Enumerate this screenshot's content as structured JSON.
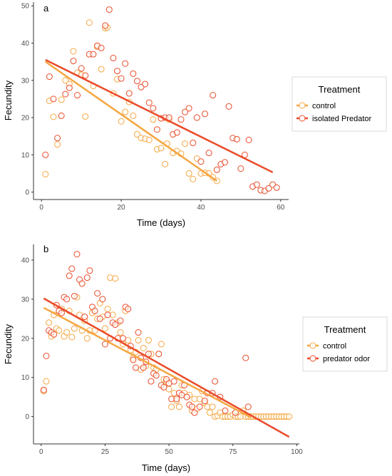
{
  "chart_data": [
    {
      "type": "scatter",
      "panel_label": "a",
      "title": "",
      "xlabel": "Time (days)",
      "ylabel": "Fecundity",
      "xlim": [
        -2,
        62
      ],
      "ylim": [
        -2,
        51
      ],
      "x_ticks": [
        0,
        20,
        40,
        60
      ],
      "y_ticks": [
        0,
        10,
        20,
        30,
        40,
        50
      ],
      "legend": {
        "title": "Treatment",
        "position": "right"
      },
      "grid": false,
      "series": [
        {
          "name": "control",
          "color": "#f5a742",
          "fit": {
            "x": [
              1,
              44
            ],
            "y": [
              35,
              3
            ]
          },
          "points": [
            [
              1,
              4.8
            ],
            [
              2,
              24.5
            ],
            [
              3,
              20.2
            ],
            [
              4,
              12.8
            ],
            [
              5,
              24.8
            ],
            [
              6,
              30
            ],
            [
              7,
              29
            ],
            [
              8,
              37.8
            ],
            [
              9,
              32
            ],
            [
              10,
              31.5
            ],
            [
              11,
              20.3
            ],
            [
              12,
              45.5
            ],
            [
              13,
              28.5
            ],
            [
              14,
              39
            ],
            [
              15,
              33
            ],
            [
              16,
              44
            ],
            [
              16.5,
              44.2
            ],
            [
              18,
              26.5
            ],
            [
              19,
              30.3
            ],
            [
              20,
              19
            ],
            [
              21,
              21.5
            ],
            [
              22,
              24.2
            ],
            [
              23,
              20.5
            ],
            [
              24,
              15.5
            ],
            [
              25,
              14.5
            ],
            [
              26,
              14.3
            ],
            [
              27,
              14
            ],
            [
              28,
              19.5
            ],
            [
              29,
              11.5
            ],
            [
              30,
              11.8
            ],
            [
              31,
              7.5
            ],
            [
              31.5,
              13
            ],
            [
              32,
              19.5
            ],
            [
              33,
              10.5
            ],
            [
              34,
              11
            ],
            [
              35,
              10.3
            ],
            [
              36,
              13
            ],
            [
              37,
              5
            ],
            [
              38,
              3.5
            ],
            [
              39,
              9
            ],
            [
              40,
              5
            ],
            [
              41,
              5.2
            ],
            [
              42,
              5
            ],
            [
              43,
              4
            ],
            [
              44,
              3
            ]
          ]
        },
        {
          "name": "isolated Predator",
          "color": "#ea4b2a",
          "fit": {
            "x": [
              1,
              58
            ],
            "y": [
              35.5,
              5.3
            ]
          },
          "points": [
            [
              1,
              10
            ],
            [
              2,
              31
            ],
            [
              3,
              25
            ],
            [
              4,
              14.5
            ],
            [
              5,
              20.5
            ],
            [
              6,
              26.3
            ],
            [
              7,
              28
            ],
            [
              8,
              35.2
            ],
            [
              9,
              26
            ],
            [
              10,
              33.2
            ],
            [
              11,
              31.3
            ],
            [
              12,
              37
            ],
            [
              13,
              37
            ],
            [
              14,
              39.3
            ],
            [
              15,
              38.7
            ],
            [
              16,
              44.7
            ],
            [
              17,
              49
            ],
            [
              18,
              36
            ],
            [
              19,
              32.5
            ],
            [
              20,
              30.5
            ],
            [
              21,
              34.5
            ],
            [
              22,
              26.5
            ],
            [
              23,
              31.8
            ],
            [
              24,
              29.8
            ],
            [
              25,
              28.2
            ],
            [
              26,
              29
            ],
            [
              27,
              24
            ],
            [
              28,
              22.5
            ],
            [
              29,
              16.8
            ],
            [
              30,
              19.8
            ],
            [
              31,
              20
            ],
            [
              32,
              20
            ],
            [
              33,
              15.5
            ],
            [
              34,
              16
            ],
            [
              35,
              19.5
            ],
            [
              36,
              21.5
            ],
            [
              37,
              22.5
            ],
            [
              38,
              13.2
            ],
            [
              39,
              20
            ],
            [
              40,
              8.2
            ],
            [
              41,
              21
            ],
            [
              42,
              10.5
            ],
            [
              43,
              26
            ],
            [
              44,
              6
            ],
            [
              45,
              7.5
            ],
            [
              46,
              8
            ],
            [
              47,
              23
            ],
            [
              48,
              14.5
            ],
            [
              49,
              14.2
            ],
            [
              50,
              6.3
            ],
            [
              51,
              10
            ],
            [
              52,
              14
            ],
            [
              53,
              1.5
            ],
            [
              54,
              2
            ],
            [
              55,
              0.5
            ],
            [
              56,
              0.3
            ],
            [
              57,
              1
            ],
            [
              58,
              2
            ],
            [
              59,
              1.2
            ]
          ]
        }
      ]
    },
    {
      "type": "scatter",
      "panel_label": "b",
      "title": "",
      "xlabel": "Time (days)",
      "ylabel": "Fecundity",
      "xlim": [
        -3,
        101
      ],
      "ylim": [
        -7,
        44
      ],
      "x_ticks": [
        0,
        25,
        50,
        75,
        100
      ],
      "y_ticks": [
        0,
        10,
        20,
        30,
        40
      ],
      "legend": {
        "title": "Treatment",
        "position": "right"
      },
      "grid": false,
      "series": [
        {
          "name": "control",
          "color": "#f5a742",
          "fit": {
            "x": [
              1,
              82
            ],
            "y": [
              27.8,
              -0.2
            ]
          },
          "points": [
            [
              1,
              6.5
            ],
            [
              2,
              9
            ],
            [
              3,
              24
            ],
            [
              4,
              20.5
            ],
            [
              5,
              26
            ],
            [
              6,
              22.5
            ],
            [
              7,
              22
            ],
            [
              8,
              27.5
            ],
            [
              9,
              20.5
            ],
            [
              10,
              21.5
            ],
            [
              11,
              27
            ],
            [
              12,
              20.3
            ],
            [
              13,
              22.5
            ],
            [
              14,
              30.5
            ],
            [
              15,
              26
            ],
            [
              16,
              22
            ],
            [
              17,
              24.5
            ],
            [
              18,
              20
            ],
            [
              19,
              22
            ],
            [
              20,
              26.5
            ],
            [
              21,
              22
            ],
            [
              22,
              25
            ],
            [
              23,
              29
            ],
            [
              24,
              25.5
            ],
            [
              25,
              22.5
            ],
            [
              26,
              27.5
            ],
            [
              27,
              35.5
            ],
            [
              28,
              26
            ],
            [
              29,
              35.3
            ],
            [
              30,
              24
            ],
            [
              31,
              21.5
            ],
            [
              32,
              18.5
            ],
            [
              33,
              27
            ],
            [
              34,
              19.5
            ],
            [
              35,
              17
            ],
            [
              36,
              15
            ],
            [
              37,
              16.5
            ],
            [
              38,
              19.5
            ],
            [
              39,
              12
            ],
            [
              40,
              17.5
            ],
            [
              41,
              13
            ],
            [
              42,
              19.5
            ],
            [
              43,
              16
            ],
            [
              44,
              12.5
            ],
            [
              45,
              12
            ],
            [
              46,
              16
            ],
            [
              47,
              18.5
            ],
            [
              48,
              9.5
            ],
            [
              49,
              9
            ],
            [
              50,
              7
            ],
            [
              51,
              2.5
            ],
            [
              52,
              6
            ],
            [
              53,
              4
            ],
            [
              54,
              2.5
            ],
            [
              55,
              8
            ],
            [
              56,
              6
            ],
            [
              57,
              5
            ],
            [
              58,
              5.5
            ],
            [
              59,
              1.5
            ],
            [
              60,
              4.5
            ],
            [
              61,
              2
            ],
            [
              62,
              4.5
            ],
            [
              63,
              6.5
            ],
            [
              64,
              3.5
            ],
            [
              65,
              2.5
            ],
            [
              66,
              1
            ],
            [
              67,
              2.5
            ],
            [
              68,
              0
            ],
            [
              69,
              0.2
            ],
            [
              70,
              1
            ],
            [
              71,
              0
            ],
            [
              72,
              0
            ],
            [
              73,
              0
            ],
            [
              74,
              0
            ],
            [
              75,
              0.5
            ],
            [
              76,
              0
            ],
            [
              77,
              0
            ],
            [
              78,
              0
            ],
            [
              79,
              1.5
            ],
            [
              80,
              0
            ],
            [
              81,
              0
            ],
            [
              82,
              0
            ],
            [
              83,
              0
            ],
            [
              84,
              0
            ],
            [
              85,
              0
            ],
            [
              86,
              0
            ],
            [
              87,
              0
            ],
            [
              88,
              0
            ],
            [
              89,
              0
            ],
            [
              90,
              0
            ],
            [
              91,
              0
            ],
            [
              92,
              0
            ],
            [
              93,
              0
            ],
            [
              94,
              0
            ],
            [
              95,
              0
            ],
            [
              96,
              0
            ],
            [
              97,
              0
            ]
          ]
        },
        {
          "name": "predator odor",
          "color": "#ea4b2a",
          "fit": {
            "x": [
              1,
              97
            ],
            "y": [
              30.2,
              -5.2
            ]
          },
          "points": [
            [
              1,
              6.8
            ],
            [
              2,
              15.5
            ],
            [
              3,
              22
            ],
            [
              4,
              21.5
            ],
            [
              5,
              21
            ],
            [
              6,
              28.5
            ],
            [
              7,
              27
            ],
            [
              8,
              26.5
            ],
            [
              9,
              30.5
            ],
            [
              10,
              30
            ],
            [
              11,
              36
            ],
            [
              12,
              37.8
            ],
            [
              13,
              30.8
            ],
            [
              14,
              41.5
            ],
            [
              15,
              35
            ],
            [
              16,
              34
            ],
            [
              17,
              25.5
            ],
            [
              18,
              35.5
            ],
            [
              19,
              37.3
            ],
            [
              20,
              28
            ],
            [
              21,
              27
            ],
            [
              22,
              31.5
            ],
            [
              23,
              25
            ],
            [
              24,
              30
            ],
            [
              25,
              18.5
            ],
            [
              26,
              26
            ],
            [
              27,
              20
            ],
            [
              28,
              24
            ],
            [
              29,
              23.5
            ],
            [
              30,
              20
            ],
            [
              31,
              24.5
            ],
            [
              32,
              20
            ],
            [
              33,
              28
            ],
            [
              34,
              27.5
            ],
            [
              35,
              18
            ],
            [
              36,
              14.5
            ],
            [
              37,
              12.5
            ],
            [
              38,
              21.5
            ],
            [
              39,
              15
            ],
            [
              40,
              12.5
            ],
            [
              41,
              14
            ],
            [
              42,
              16
            ],
            [
              43,
              9
            ],
            [
              44,
              11
            ],
            [
              45,
              10.5
            ],
            [
              46,
              16
            ],
            [
              47,
              8
            ],
            [
              48,
              7.5
            ],
            [
              49,
              9.5
            ],
            [
              50,
              8.5
            ],
            [
              51,
              4.5
            ],
            [
              52,
              9
            ],
            [
              53,
              4.5
            ],
            [
              54,
              6
            ],
            [
              55,
              5.5
            ],
            [
              56,
              8
            ],
            [
              57,
              5
            ],
            [
              58,
              3
            ],
            [
              59,
              2.5
            ],
            [
              60,
              1
            ],
            [
              62,
              2.5
            ],
            [
              64,
              4
            ],
            [
              65,
              6
            ],
            [
              67,
              6
            ],
            [
              68,
              9
            ],
            [
              70,
              5
            ],
            [
              72,
              1.5
            ],
            [
              76,
              1
            ],
            [
              80,
              15
            ],
            [
              81,
              2.5
            ]
          ]
        }
      ]
    }
  ]
}
